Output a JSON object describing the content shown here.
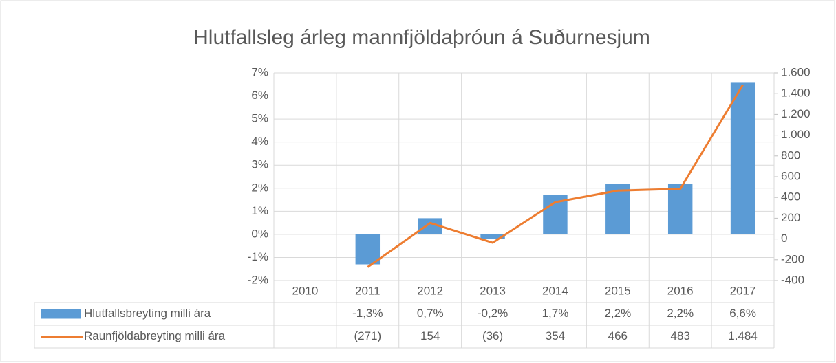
{
  "chart_data": {
    "type": "bar_line_table",
    "title": "Hlutfallsleg árleg mannfjöldaþróun á Suðurnesjum",
    "categories": [
      "2010",
      "2011",
      "2012",
      "2013",
      "2014",
      "2015",
      "2016",
      "2017"
    ],
    "series": [
      {
        "name": "Hlutfallsbreyting milli ára",
        "type": "bar",
        "color": "#5b9bd5",
        "values": [
          null,
          -1.3,
          0.7,
          -0.2,
          1.7,
          2.2,
          2.2,
          6.6
        ],
        "value_labels": [
          null,
          "-1,3%",
          "0,7%",
          "-0,2%",
          "1,7%",
          "2,2%",
          "2,2%",
          "6,6%"
        ]
      },
      {
        "name": "Raunfjöldabreyting milli ára",
        "type": "line",
        "axis": "y2",
        "color": "#ed7d31",
        "values": [
          null,
          -271,
          154,
          -36,
          354,
          466,
          483,
          1484
        ],
        "value_labels": [
          null,
          "(271)",
          "154",
          "(36)",
          "354",
          "466",
          "483",
          "1.484"
        ]
      }
    ],
    "ylim": [
      -2,
      7
    ],
    "yticks": [
      {
        "value": -2,
        "label": "-2%"
      },
      {
        "value": -1,
        "label": "-1%"
      },
      {
        "value": 0,
        "label": "0%"
      },
      {
        "value": 1,
        "label": "1%"
      },
      {
        "value": 2,
        "label": "2%"
      },
      {
        "value": 3,
        "label": "3%"
      },
      {
        "value": 4,
        "label": "4%"
      },
      {
        "value": 5,
        "label": "5%"
      },
      {
        "value": 6,
        "label": "6%"
      },
      {
        "value": 7,
        "label": "7%"
      }
    ],
    "y2lim": [
      -400,
      1600
    ],
    "y2ticks": [
      -400,
      -200,
      0,
      200,
      400,
      600,
      800,
      {
        "value": 1000,
        "label": "1.000"
      },
      {
        "value": 1200,
        "label": "1.200"
      },
      {
        "value": 1400,
        "label": "1.400"
      },
      {
        "value": 1600,
        "label": "1.600"
      }
    ],
    "grid": true
  }
}
